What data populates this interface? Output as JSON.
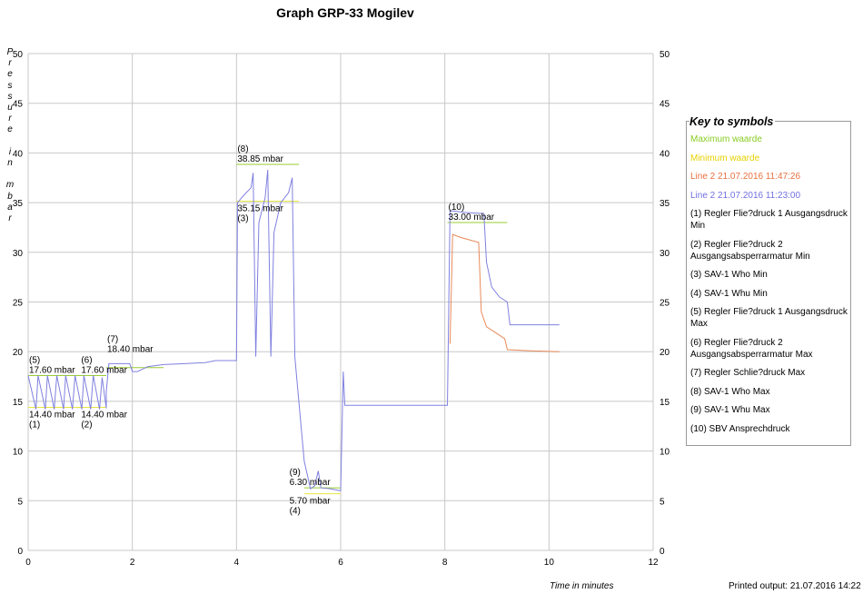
{
  "chart_data": {
    "type": "line",
    "title": "Graph GRP-33 Mogilev",
    "xlabel": "Time in minutes",
    "ylabel": "Pressure in mbar",
    "xlim": [
      0,
      12
    ],
    "ylim": [
      0,
      50
    ],
    "xticks": [
      0,
      2,
      4,
      6,
      8,
      10,
      12
    ],
    "yticks": [
      0,
      5,
      10,
      15,
      20,
      25,
      30,
      35,
      40,
      45,
      50
    ],
    "grid": true,
    "legend_placement": "right",
    "series": [
      {
        "name": "Line 2 21.07.2016 11:23:00",
        "color": "#8080e0",
        "points": [
          [
            0,
            17.6
          ],
          [
            0.15,
            14.2
          ],
          [
            0.19,
            17.6
          ],
          [
            0.33,
            14.2
          ],
          [
            0.37,
            17.6
          ],
          [
            0.5,
            14.2
          ],
          [
            0.55,
            17.6
          ],
          [
            0.68,
            14.2
          ],
          [
            0.72,
            17.6
          ],
          [
            0.85,
            14.2
          ],
          [
            0.9,
            17.6
          ],
          [
            1.03,
            14.2
          ],
          [
            1.07,
            17.6
          ],
          [
            1.2,
            14.2
          ],
          [
            1.25,
            17.6
          ],
          [
            1.37,
            14.2
          ],
          [
            1.42,
            17.4
          ],
          [
            1.5,
            14.3
          ],
          [
            1.5,
            16
          ],
          [
            1.55,
            18.8
          ],
          [
            1.95,
            18.8
          ],
          [
            2.0,
            18.0
          ],
          [
            2.1,
            18.0
          ],
          [
            2.3,
            18.5
          ],
          [
            2.6,
            18.7
          ],
          [
            3.0,
            18.8
          ],
          [
            3.4,
            18.9
          ],
          [
            3.6,
            19.1
          ],
          [
            4.0,
            19.1
          ],
          [
            4.02,
            35.0
          ],
          [
            4.15,
            35.8
          ],
          [
            4.28,
            36.5
          ],
          [
            4.32,
            38.0
          ],
          [
            4.37,
            19.5
          ],
          [
            4.43,
            33.0
          ],
          [
            4.55,
            35.5
          ],
          [
            4.6,
            38.3
          ],
          [
            4.66,
            19.5
          ],
          [
            4.72,
            32.0
          ],
          [
            4.85,
            35.0
          ],
          [
            5.0,
            36.0
          ],
          [
            5.07,
            37.5
          ],
          [
            5.12,
            19.5
          ],
          [
            5.3,
            9.0
          ],
          [
            5.42,
            6.2
          ],
          [
            5.5,
            6.5
          ],
          [
            5.57,
            8.0
          ],
          [
            5.62,
            6.3
          ],
          [
            5.8,
            6.2
          ],
          [
            6.0,
            6.0
          ],
          [
            6.05,
            18.0
          ],
          [
            6.08,
            14.6
          ],
          [
            7.0,
            14.6
          ],
          [
            8.05,
            14.6
          ],
          [
            8.1,
            34.2
          ],
          [
            8.4,
            34.0
          ],
          [
            8.75,
            33.9
          ],
          [
            8.8,
            29.0
          ],
          [
            8.9,
            26.5
          ],
          [
            9.05,
            25.5
          ],
          [
            9.2,
            25.0
          ],
          [
            9.25,
            22.7
          ],
          [
            10.2,
            22.7
          ]
        ]
      },
      {
        "name": "Line 2 21.07.2016 11:47:26",
        "color": "#e88a5a",
        "points": [
          [
            8.1,
            20.8
          ],
          [
            8.15,
            31.8
          ],
          [
            8.3,
            31.5
          ],
          [
            8.65,
            31.0
          ],
          [
            8.7,
            24.0
          ],
          [
            8.8,
            22.5
          ],
          [
            8.95,
            22.0
          ],
          [
            9.15,
            21.3
          ],
          [
            9.2,
            20.2
          ],
          [
            9.6,
            20.1
          ],
          [
            10.2,
            20.0
          ]
        ]
      }
    ],
    "limits": [
      {
        "kind": "max",
        "value": 17.6,
        "x": [
          0,
          1.5
        ],
        "label": "17.60 mbar",
        "id": "(5)"
      },
      {
        "kind": "min",
        "value": 14.4,
        "x": [
          0,
          1.5
        ],
        "label": "14.40 mbar",
        "id": "(1)"
      },
      {
        "kind": "max",
        "value": 18.4,
        "x": [
          1.5,
          2.6
        ],
        "label": "18.40 mbar",
        "id": "(7)"
      },
      {
        "kind": "max",
        "value": 38.85,
        "x": [
          4,
          5.2
        ],
        "label": "38.85 mbar",
        "id": "(8)"
      },
      {
        "kind": "min",
        "value": 35.15,
        "x": [
          4,
          5.2
        ],
        "label": "35.15 mbar",
        "id": "(3)"
      },
      {
        "kind": "max",
        "value": 6.3,
        "x": [
          5.3,
          6.0
        ],
        "label": "6.30 mbar",
        "id": "(9)"
      },
      {
        "kind": "min",
        "value": 5.7,
        "x": [
          5.3,
          6.0
        ],
        "label": "5.70 mbar",
        "id": "(4)"
      },
      {
        "kind": "max",
        "value": 33.0,
        "x": [
          8.05,
          9.2
        ],
        "label": "33.00 mbar",
        "id": "(10)"
      }
    ],
    "annotations": [
      {
        "id": "(5)",
        "label": "17.60 mbar",
        "x": 0,
        "y": 17.6,
        "pos": "above"
      },
      {
        "id": "(6)",
        "label": "17.60 mbar",
        "x": 1.0,
        "y": 17.6,
        "pos": "above"
      },
      {
        "id": "(1)",
        "label": "14.40 mbar",
        "x": 0,
        "y": 14.4,
        "pos": "below"
      },
      {
        "id": "(2)",
        "label": "14.40 mbar",
        "x": 1.0,
        "y": 14.4,
        "pos": "below"
      },
      {
        "id": "(7)",
        "label": "18.40 mbar",
        "x": 1.5,
        "y": 18.4,
        "pos": "above"
      },
      {
        "id": "(8)",
        "label": "38.85 mbar",
        "x": 4,
        "y": 38.85,
        "pos": "above"
      },
      {
        "id": "(3)",
        "label": "35.15 mbar",
        "x": 4,
        "y": 35.15,
        "pos": "below"
      },
      {
        "id": "(9)",
        "label": "6.30 mbar",
        "x": 5.0,
        "y": 6.3,
        "pos": "above"
      },
      {
        "id": "(4)",
        "label": "5.70 mbar",
        "x": 5.0,
        "y": 5.7,
        "pos": "below"
      },
      {
        "id": "(10)",
        "label": "33.00 mbar",
        "x": 8.05,
        "y": 33.0,
        "pos": "above"
      }
    ]
  },
  "colors": {
    "max": "#99cc33",
    "min": "#e6e640",
    "grid": "#c8c8c8"
  },
  "ylabel_letters": "P\nr\ne\ns\ns\nu\nr\ne\n \ni\nn\n \nm\nb\na\nr",
  "printed": "Printed output: 21.07.2016 14:22",
  "key": {
    "title": "Key to symbols",
    "items": [
      {
        "text": "Maximum waarde",
        "color": "#88cc22"
      },
      {
        "text": "Minimum waarde",
        "color": "#e6d200"
      },
      {
        "text": "Line 2 21.07.2016 11:47:26",
        "color": "#e87040"
      },
      {
        "text": "Line 2 21.07.2016 11:23:00",
        "color": "#7070e0"
      },
      {
        "text": "(1) Regler Flie?druck 1 Ausgangsdruck Min",
        "color": "#000"
      },
      {
        "text": "(2) Regler Flie?druck 2 Ausgangsabsperrarmatur Min",
        "color": "#000"
      },
      {
        "text": "(3) SAV-1 Who Min",
        "color": "#000"
      },
      {
        "text": "(4) SAV-1 Whu Min",
        "color": "#000"
      },
      {
        "text": "(5) Regler Flie?druck 1 Ausgangsdruck Max",
        "color": "#000"
      },
      {
        "text": "(6) Regler Flie?druck 2 Ausgangsabsperrarmatur Max",
        "color": "#000"
      },
      {
        "text": "(7) Regler Schlie?druck Max",
        "color": "#000"
      },
      {
        "text": "(8) SAV-1 Who Max",
        "color": "#000"
      },
      {
        "text": "(9) SAV-1 Whu Max",
        "color": "#000"
      },
      {
        "text": "(10) SBV Ansprechdruck",
        "color": "#000"
      }
    ]
  }
}
